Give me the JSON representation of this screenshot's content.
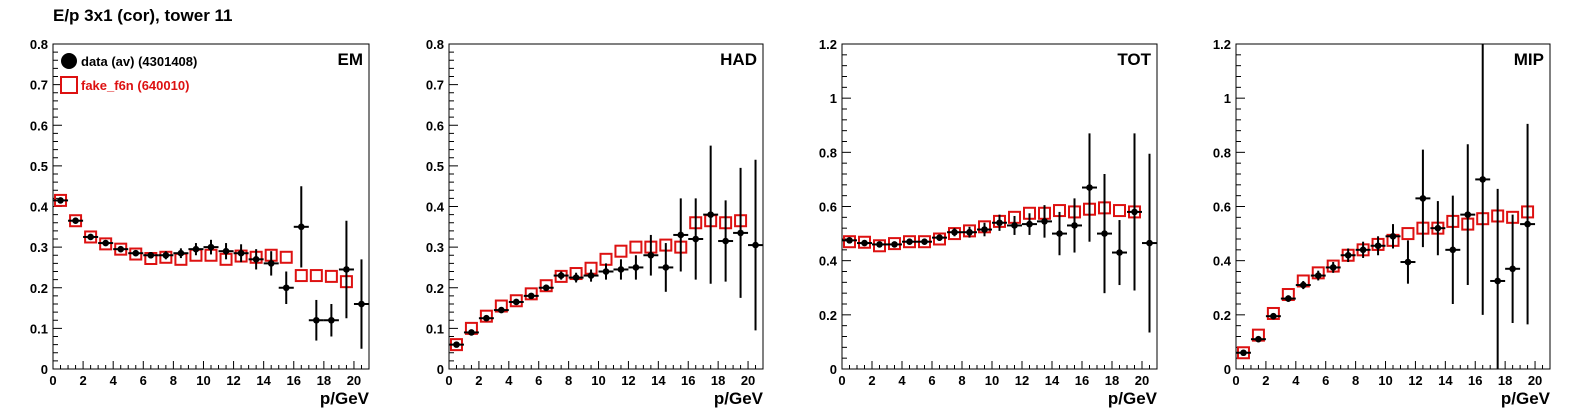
{
  "title": "E/p 3x1 (cor), tower 11",
  "colors": {
    "data": "#000000",
    "fake": "#dd1111",
    "axis": "#000000"
  },
  "chart_data": [
    {
      "type": "scatter",
      "panel_label": "EM",
      "xlabel": "p/GeV",
      "xlim": [
        0,
        21
      ],
      "ylim": [
        0,
        0.8
      ],
      "xticks": [
        0,
        2,
        4,
        6,
        8,
        10,
        12,
        14,
        16,
        18,
        20
      ],
      "xtick_labels": [
        "0",
        "2",
        "4",
        "6",
        "8",
        "10",
        "12",
        "14",
        "16",
        "18",
        "20"
      ],
      "yticks": [
        0,
        0.1,
        0.2,
        0.3,
        0.4,
        0.5,
        0.6,
        0.7,
        0.8
      ],
      "ytick_labels": [
        "0",
        "0.1",
        "0.2",
        "0.3",
        "0.4",
        "0.5",
        "0.6",
        "0.7",
        "0.8"
      ],
      "legend": {
        "placement": "top-left",
        "entries": [
          {
            "label": "data (av) (4301408)",
            "series": "data"
          },
          {
            "label": "fake_f6n (640010)",
            "series": "fake"
          }
        ]
      },
      "series": [
        {
          "name": "data (av) (4301408)",
          "marker": "filled-circle",
          "x": [
            0.5,
            1.5,
            2.5,
            3.5,
            4.5,
            5.5,
            6.5,
            7.5,
            8.5,
            9.5,
            10.5,
            11.5,
            12.5,
            13.5,
            14.5,
            15.5,
            16.5,
            17.5,
            18.5,
            19.5,
            20.5
          ],
          "y": [
            0.415,
            0.365,
            0.325,
            0.31,
            0.295,
            0.285,
            0.28,
            0.28,
            0.285,
            0.295,
            0.3,
            0.29,
            0.285,
            0.27,
            0.26,
            0.2,
            0.35,
            0.12,
            0.12,
            0.245,
            0.16
          ],
          "yerr": [
            0.006,
            0.005,
            0.005,
            0.005,
            0.005,
            0.006,
            0.008,
            0.01,
            0.012,
            0.015,
            0.018,
            0.02,
            0.022,
            0.025,
            0.03,
            0.04,
            0.1,
            0.05,
            0.04,
            0.12,
            0.11
          ]
        },
        {
          "name": "fake_f6n (640010)",
          "marker": "open-square",
          "x": [
            0.5,
            1.5,
            2.5,
            3.5,
            4.5,
            5.5,
            6.5,
            7.5,
            8.5,
            9.5,
            10.5,
            11.5,
            12.5,
            13.5,
            14.5,
            15.5,
            16.5,
            17.5,
            18.5,
            19.5
          ],
          "y": [
            0.415,
            0.365,
            0.325,
            0.308,
            0.295,
            0.283,
            0.272,
            0.275,
            0.27,
            0.28,
            0.28,
            0.27,
            0.278,
            0.275,
            0.28,
            0.275,
            0.23,
            0.23,
            0.228,
            0.215
          ]
        }
      ]
    },
    {
      "type": "scatter",
      "panel_label": "HAD",
      "xlabel": "p/GeV",
      "xlim": [
        0,
        21
      ],
      "ylim": [
        0,
        0.8
      ],
      "xticks": [
        0,
        2,
        4,
        6,
        8,
        10,
        12,
        14,
        16,
        18,
        20
      ],
      "xtick_labels": [
        "0",
        "2",
        "4",
        "6",
        "8",
        "10",
        "12",
        "14",
        "16",
        "18",
        "20"
      ],
      "yticks": [
        0,
        0.1,
        0.2,
        0.3,
        0.4,
        0.5,
        0.6,
        0.7,
        0.8
      ],
      "ytick_labels": [
        "0",
        "0.1",
        "0.2",
        "0.3",
        "0.4",
        "0.5",
        "0.6",
        "0.7",
        "0.8"
      ],
      "series": [
        {
          "name": "data (av) (4301408)",
          "marker": "filled-circle",
          "x": [
            0.5,
            1.5,
            2.5,
            3.5,
            4.5,
            5.5,
            6.5,
            7.5,
            8.5,
            9.5,
            10.5,
            11.5,
            12.5,
            13.5,
            14.5,
            15.5,
            16.5,
            17.5,
            18.5,
            19.5,
            20.5
          ],
          "y": [
            0.06,
            0.09,
            0.125,
            0.145,
            0.165,
            0.18,
            0.2,
            0.23,
            0.225,
            0.23,
            0.24,
            0.245,
            0.25,
            0.28,
            0.25,
            0.33,
            0.32,
            0.38,
            0.315,
            0.335,
            0.305
          ],
          "yerr": [
            0.004,
            0.005,
            0.005,
            0.006,
            0.006,
            0.007,
            0.008,
            0.01,
            0.012,
            0.015,
            0.02,
            0.025,
            0.03,
            0.05,
            0.06,
            0.09,
            0.1,
            0.17,
            0.1,
            0.16,
            0.21
          ]
        },
        {
          "name": "fake_f6n (640010)",
          "marker": "open-square",
          "x": [
            0.5,
            1.5,
            2.5,
            3.5,
            4.5,
            5.5,
            6.5,
            7.5,
            8.5,
            9.5,
            10.5,
            11.5,
            12.5,
            13.5,
            14.5,
            15.5,
            16.5,
            17.5,
            18.5,
            19.5
          ],
          "y": [
            0.06,
            0.1,
            0.13,
            0.155,
            0.168,
            0.185,
            0.205,
            0.228,
            0.235,
            0.248,
            0.27,
            0.29,
            0.3,
            0.3,
            0.305,
            0.3,
            0.36,
            0.365,
            0.36,
            0.365
          ]
        }
      ]
    },
    {
      "type": "scatter",
      "panel_label": "TOT",
      "xlabel": "p/GeV",
      "xlim": [
        0,
        21
      ],
      "ylim": [
        0,
        1.2
      ],
      "xticks": [
        0,
        2,
        4,
        6,
        8,
        10,
        12,
        14,
        16,
        18,
        20
      ],
      "xtick_labels": [
        "0",
        "2",
        "4",
        "6",
        "8",
        "10",
        "12",
        "14",
        "16",
        "18",
        "20"
      ],
      "yticks": [
        0,
        0.2,
        0.4,
        0.6,
        0.8,
        1,
        1.2
      ],
      "ytick_labels": [
        "0",
        "0.2",
        "0.4",
        "0.6",
        "0.8",
        "1",
        "1.2"
      ],
      "series": [
        {
          "name": "data (av) (4301408)",
          "marker": "filled-circle",
          "x": [
            0.5,
            1.5,
            2.5,
            3.5,
            4.5,
            5.5,
            6.5,
            7.5,
            8.5,
            9.5,
            10.5,
            11.5,
            12.5,
            13.5,
            14.5,
            15.5,
            16.5,
            17.5,
            18.5,
            19.5,
            20.5
          ],
          "y": [
            0.475,
            0.465,
            0.46,
            0.46,
            0.47,
            0.47,
            0.485,
            0.505,
            0.505,
            0.515,
            0.54,
            0.53,
            0.535,
            0.545,
            0.5,
            0.53,
            0.67,
            0.5,
            0.43,
            0.58,
            0.465
          ],
          "yerr": [
            0.008,
            0.008,
            0.008,
            0.008,
            0.009,
            0.01,
            0.012,
            0.015,
            0.02,
            0.025,
            0.03,
            0.035,
            0.04,
            0.06,
            0.08,
            0.1,
            0.2,
            0.22,
            0.12,
            0.29,
            0.33
          ]
        },
        {
          "name": "fake_f6n (640010)",
          "marker": "open-square",
          "x": [
            0.5,
            1.5,
            2.5,
            3.5,
            4.5,
            5.5,
            6.5,
            7.5,
            8.5,
            9.5,
            10.5,
            11.5,
            12.5,
            13.5,
            14.5,
            15.5,
            16.5,
            17.5,
            18.5,
            19.5
          ],
          "y": [
            0.47,
            0.468,
            0.455,
            0.463,
            0.47,
            0.47,
            0.48,
            0.5,
            0.51,
            0.525,
            0.545,
            0.56,
            0.575,
            0.575,
            0.585,
            0.58,
            0.59,
            0.595,
            0.585,
            0.58
          ]
        }
      ]
    },
    {
      "type": "scatter",
      "panel_label": "MIP",
      "xlabel": "p/GeV",
      "xlim": [
        0,
        21
      ],
      "ylim": [
        0,
        1.2
      ],
      "xticks": [
        0,
        2,
        4,
        6,
        8,
        10,
        12,
        14,
        16,
        18,
        20
      ],
      "xtick_labels": [
        "0",
        "2",
        "4",
        "6",
        "8",
        "10",
        "12",
        "14",
        "16",
        "18",
        "20"
      ],
      "yticks": [
        0,
        0.2,
        0.4,
        0.6,
        0.8,
        1,
        1.2
      ],
      "ytick_labels": [
        "0",
        "0.2",
        "0.4",
        "0.6",
        "0.8",
        "1",
        "1.2"
      ],
      "series": [
        {
          "name": "data (av) (4301408)",
          "marker": "filled-circle",
          "x": [
            0.5,
            1.5,
            2.5,
            3.5,
            4.5,
            5.5,
            6.5,
            7.5,
            8.5,
            9.5,
            10.5,
            11.5,
            12.5,
            13.5,
            14.5,
            15.5,
            16.5,
            17.5,
            18.5,
            19.5
          ],
          "y": [
            0.06,
            0.11,
            0.195,
            0.26,
            0.31,
            0.345,
            0.375,
            0.42,
            0.44,
            0.455,
            0.49,
            0.395,
            0.63,
            0.52,
            0.44,
            0.57,
            0.7,
            0.325,
            0.37,
            0.535
          ],
          "yerr": [
            0.008,
            0.008,
            0.01,
            0.012,
            0.015,
            0.018,
            0.02,
            0.025,
            0.03,
            0.035,
            0.045,
            0.08,
            0.18,
            0.1,
            0.2,
            0.26,
            0.5,
            0.34,
            0.2,
            0.37
          ]
        },
        {
          "name": "fake_f6n (640010)",
          "marker": "open-square",
          "x": [
            0.5,
            1.5,
            2.5,
            3.5,
            4.5,
            5.5,
            6.5,
            7.5,
            8.5,
            9.5,
            10.5,
            11.5,
            12.5,
            13.5,
            14.5,
            15.5,
            16.5,
            17.5,
            18.5,
            19.5
          ],
          "y": [
            0.06,
            0.125,
            0.205,
            0.275,
            0.325,
            0.355,
            0.38,
            0.42,
            0.44,
            0.46,
            0.475,
            0.5,
            0.52,
            0.52,
            0.545,
            0.535,
            0.555,
            0.565,
            0.56,
            0.58
          ]
        }
      ]
    }
  ]
}
